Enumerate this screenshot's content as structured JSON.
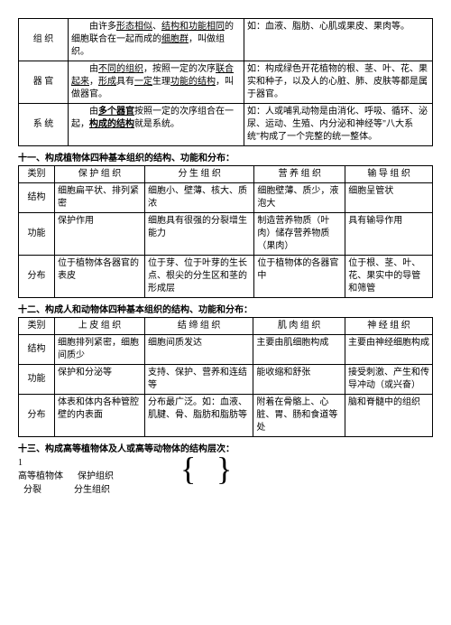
{
  "table1": {
    "rows": [
      {
        "label": "组 织",
        "def": "由许多<u>形态相似</u>、<u>结构和功能相同</u>的细胞联合在一起而成的<u>细胞群</u>，叫做组织。",
        "ex": "如：血液、脂肪、心肌或果皮、果肉等。"
      },
      {
        "label": "器 官",
        "def": "由<u>不同的组织</u>，按照一定的次序<u>联合起来</u>，<u>形成</u>具有<u>一定</u>生理<u>功能的结构</u>，叫做器官。",
        "ex": "如：构成绿色开花植物的根、茎、叶、花、果实和种子，以及人的心脏、肺、皮肤等都是属于器官。"
      },
      {
        "label": "系 统",
        "def": "由<b><u>多个器官</u></b>按照一定的次序组合在一起，<b><u>构成的结构</u></b>就是系统。",
        "ex": "如：人或哺乳动物是由消化、呼吸、循环、泌尿、运动、生殖、内分泌和神经等\"八大系统\"构成了一个完整的统一整体。"
      }
    ]
  },
  "h1": "十一、构成植物体四种基本组织的结构、功能和分布：",
  "table2": {
    "head": [
      "类别",
      "保 护 组 织",
      "分 生 组 织",
      "营 养 组 织",
      "输 导 组 织"
    ],
    "rows": [
      {
        "h": "结构",
        "c": [
          "细胞扁平状、排列紧密",
          "细胞小、壁薄、核大、质浓",
          "细胞壁薄、质少，液泡大",
          "细胞呈管状"
        ]
      },
      {
        "h": "功能",
        "c": [
          "保护作用",
          "细胞具有很强的分裂增生能力",
          "制造营养物质（叶肉）储存营养物质（果肉）",
          "具有输导作用"
        ]
      },
      {
        "h": "分布",
        "c": [
          "位于植物体各器官的表皮",
          "位于芽、位于叶芽的生长点、根尖的分生区和茎的形成层",
          "位于植物体的各器官中",
          "位于根、茎、叶、花、果实中的导管和筛管"
        ]
      }
    ]
  },
  "h2": "十二、构成人和动物体四种基本组织的结构、功能和分布：",
  "table3": {
    "head": [
      "类别",
      "上 皮 组 织",
      "结 缔 组 织",
      "肌 肉 组 织",
      "神 经 组 织"
    ],
    "rows": [
      {
        "h": "结构",
        "c": [
          "细胞排列紧密，细胞间质少",
          "细胞间质发达",
          "主要由肌细胞构成",
          "主要由神经细胞构成"
        ]
      },
      {
        "h": "功能",
        "c": [
          "保护和分泌等",
          "支持、保护、营养和连结等",
          "能收缩和舒张",
          "接受刺激、产生和传导冲动（或兴奋）"
        ]
      },
      {
        "h": "分布",
        "c": [
          "体表和体内各种管腔壁的内表面",
          "分布最广泛。如：血液、肌腱、骨、脂肪和脂肪等",
          "附着在骨骼上、心脏、胃、肠和食道等处",
          "脑和脊髓中的组织"
        ]
      }
    ]
  },
  "h3": "十三、构成高等植物体及人或高等动物体的结构层次：",
  "hier": {
    "num": "1",
    "l1": "高等植物体",
    "l2a": "保护组织",
    "l3": "分裂",
    "l2b": "分生组织"
  }
}
